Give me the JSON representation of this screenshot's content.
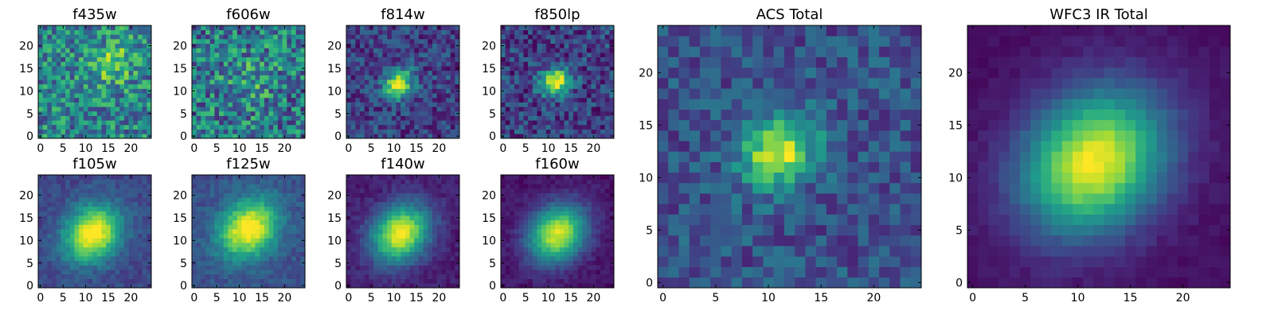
{
  "chart_data": [
    {
      "type": "heatmap",
      "title": "f435w",
      "xlim": [
        -0.5,
        24.5
      ],
      "ylim": [
        -0.5,
        24.5
      ],
      "xticks": [
        "0",
        "5",
        "10",
        "15",
        "20"
      ],
      "yticks": [
        "0",
        "5",
        "10",
        "15",
        "20"
      ],
      "grid": false,
      "colormap": "viridis",
      "noise": 0.55,
      "peak": 0.3,
      "center": [
        16,
        16
      ],
      "spread": 3,
      "base": 0.45
    },
    {
      "type": "heatmap",
      "title": "f606w",
      "xlim": [
        -0.5,
        24.5
      ],
      "ylim": [
        -0.5,
        24.5
      ],
      "xticks": [
        "0",
        "5",
        "10",
        "15",
        "20"
      ],
      "yticks": [
        "0",
        "5",
        "10",
        "15",
        "20"
      ],
      "grid": false,
      "colormap": "viridis",
      "noise": 0.6,
      "peak": 0.15,
      "center": [
        12,
        12
      ],
      "spread": 4,
      "base": 0.4
    },
    {
      "type": "heatmap",
      "title": "f814w",
      "xlim": [
        -0.5,
        24.5
      ],
      "ylim": [
        -0.5,
        24.5
      ],
      "xticks": [
        "0",
        "5",
        "10",
        "15",
        "20"
      ],
      "yticks": [
        "0",
        "5",
        "10",
        "15",
        "20"
      ],
      "grid": false,
      "colormap": "viridis",
      "noise": 0.35,
      "peak": 0.75,
      "center": [
        11,
        11.5
      ],
      "spread": 2,
      "base": 0.2
    },
    {
      "type": "heatmap",
      "title": "f850lp",
      "xlim": [
        -0.5,
        24.5
      ],
      "ylim": [
        -0.5,
        24.5
      ],
      "xticks": [
        "0",
        "5",
        "10",
        "15",
        "20"
      ],
      "yticks": [
        "0",
        "5",
        "10",
        "15",
        "20"
      ],
      "grid": false,
      "colormap": "viridis",
      "noise": 0.4,
      "peak": 0.75,
      "center": [
        11.5,
        12
      ],
      "spread": 2,
      "base": 0.2
    },
    {
      "type": "heatmap",
      "title": "f105w",
      "xlim": [
        -0.5,
        24.5
      ],
      "ylim": [
        -0.5,
        24.5
      ],
      "xticks": [
        "0",
        "5",
        "10",
        "15",
        "20"
      ],
      "yticks": [
        "0",
        "5",
        "10",
        "15",
        "20"
      ],
      "grid": false,
      "colormap": "viridis",
      "noise": 0.15,
      "peak": 0.85,
      "center": [
        11.5,
        11.5
      ],
      "spread": 3.8,
      "base": 0.22
    },
    {
      "type": "heatmap",
      "title": "f125w",
      "xlim": [
        -0.5,
        24.5
      ],
      "ylim": [
        -0.5,
        24.5
      ],
      "xticks": [
        "0",
        "5",
        "10",
        "15",
        "20"
      ],
      "yticks": [
        "0",
        "5",
        "10",
        "15",
        "20"
      ],
      "grid": false,
      "colormap": "viridis",
      "noise": 0.15,
      "peak": 0.8,
      "center": [
        12,
        12.5
      ],
      "spread": 4,
      "base": 0.25
    },
    {
      "type": "heatmap",
      "title": "f140w",
      "xlim": [
        -0.5,
        24.5
      ],
      "ylim": [
        -0.5,
        24.5
      ],
      "xticks": [
        "0",
        "5",
        "10",
        "15",
        "20"
      ],
      "yticks": [
        "0",
        "5",
        "10",
        "15",
        "20"
      ],
      "grid": false,
      "colormap": "viridis",
      "noise": 0.12,
      "peak": 0.9,
      "center": [
        11.5,
        11.5
      ],
      "spread": 4,
      "base": 0.08
    },
    {
      "type": "heatmap",
      "title": "f160w",
      "xlim": [
        -0.5,
        24.5
      ],
      "ylim": [
        -0.5,
        24.5
      ],
      "xticks": [
        "0",
        "5",
        "10",
        "15",
        "20"
      ],
      "yticks": [
        "0",
        "5",
        "10",
        "15",
        "20"
      ],
      "grid": false,
      "colormap": "viridis",
      "noise": 0.1,
      "peak": 0.9,
      "center": [
        12,
        11.5
      ],
      "spread": 4,
      "base": 0.05
    },
    {
      "type": "heatmap",
      "title": "ACS Total",
      "xlim": [
        -0.5,
        24.5
      ],
      "ylim": [
        -0.5,
        24.5
      ],
      "xticks": [
        "0",
        "5",
        "10",
        "15",
        "20"
      ],
      "yticks": [
        "0",
        "5",
        "10",
        "15",
        "20"
      ],
      "grid": false,
      "colormap": "viridis",
      "noise": 0.3,
      "peak": 0.7,
      "center": [
        11,
        12.5
      ],
      "spread": 2.2,
      "base": 0.25
    },
    {
      "type": "heatmap",
      "title": "WFC3 IR Total",
      "xlim": [
        -0.5,
        24.5
      ],
      "ylim": [
        -0.5,
        24.5
      ],
      "xticks": [
        "0",
        "5",
        "10",
        "15",
        "20"
      ],
      "yticks": [
        "0",
        "5",
        "10",
        "15",
        "20"
      ],
      "grid": false,
      "colormap": "viridis",
      "noise": 0.06,
      "peak": 0.95,
      "center": [
        11.5,
        11.5
      ],
      "spread": 4.2,
      "base": 0.04
    }
  ]
}
